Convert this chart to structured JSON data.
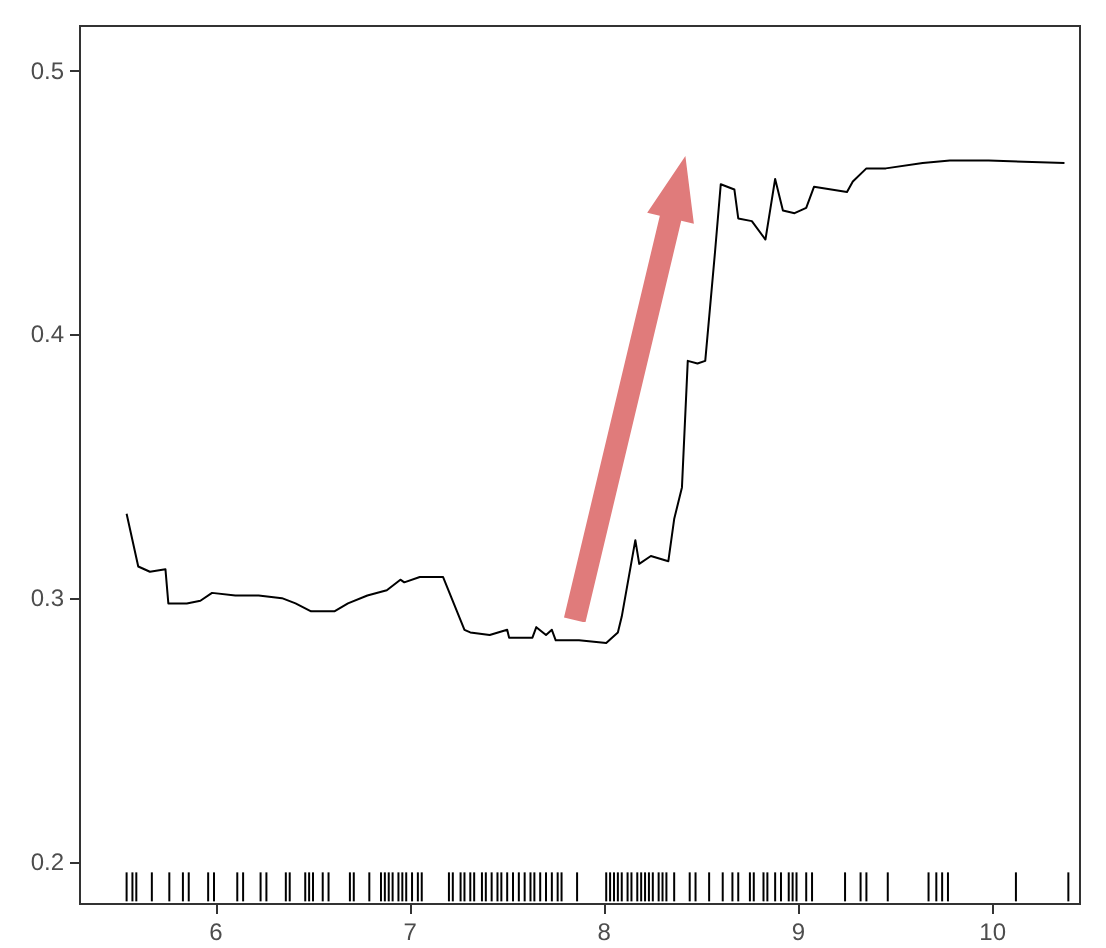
{
  "chart_data": {
    "type": "line",
    "xlim": [
      5.3,
      10.45
    ],
    "ylim": [
      0.184,
      0.517
    ],
    "xticks": [
      6,
      7,
      8,
      9,
      10
    ],
    "yticks": [
      0.2,
      0.3,
      0.4,
      0.5
    ],
    "grid": false,
    "series": [
      {
        "color": "#000000",
        "x": [
          5.54,
          5.6,
          5.66,
          5.74,
          5.755,
          5.85,
          5.92,
          5.98,
          6.1,
          6.22,
          6.34,
          6.41,
          6.49,
          6.61,
          6.68,
          6.78,
          6.88,
          6.95,
          6.97,
          7.05,
          7.17,
          7.28,
          7.31,
          7.41,
          7.5,
          7.51,
          7.63,
          7.65,
          7.7,
          7.73,
          7.75,
          7.87,
          8.01,
          8.07,
          8.09,
          8.16,
          8.18,
          8.24,
          8.33,
          8.36,
          8.4,
          8.43,
          8.48,
          8.52,
          8.57,
          8.6,
          8.67,
          8.69,
          8.76,
          8.83,
          8.88,
          8.92,
          8.98,
          9.04,
          9.08,
          9.25,
          9.28,
          9.35,
          9.45,
          9.64,
          9.78,
          9.98,
          10.37
        ],
        "values": [
          0.332,
          0.312,
          0.31,
          0.311,
          0.298,
          0.298,
          0.299,
          0.302,
          0.301,
          0.301,
          0.3,
          0.298,
          0.295,
          0.295,
          0.298,
          0.301,
          0.303,
          0.307,
          0.306,
          0.308,
          0.308,
          0.288,
          0.287,
          0.286,
          0.288,
          0.285,
          0.285,
          0.289,
          0.286,
          0.288,
          0.284,
          0.284,
          0.283,
          0.287,
          0.293,
          0.322,
          0.313,
          0.316,
          0.314,
          0.33,
          0.342,
          0.39,
          0.389,
          0.39,
          0.431,
          0.457,
          0.455,
          0.444,
          0.443,
          0.436,
          0.459,
          0.447,
          0.446,
          0.448,
          0.456,
          0.454,
          0.458,
          0.463,
          0.463,
          0.465,
          0.466,
          0.466,
          0.465
        ]
      },
      {
        "type": "bar",
        "color": "#000000",
        "x": [
          5.54,
          5.57,
          5.59,
          5.67,
          5.76,
          5.83,
          5.86,
          5.96,
          5.99,
          6.11,
          6.14,
          6.23,
          6.26,
          6.36,
          6.38,
          6.46,
          6.48,
          6.5,
          6.55,
          6.58,
          6.69,
          6.71,
          6.79,
          6.85,
          6.87,
          6.89,
          6.91,
          6.94,
          6.96,
          6.98,
          7.01,
          7.04,
          7.06,
          7.2,
          7.22,
          7.26,
          7.28,
          7.31,
          7.33,
          7.37,
          7.39,
          7.42,
          7.45,
          7.47,
          7.5,
          7.53,
          7.56,
          7.59,
          7.62,
          7.64,
          7.67,
          7.7,
          7.73,
          7.76,
          7.78,
          7.86,
          8.01,
          8.03,
          8.05,
          8.07,
          8.09,
          8.12,
          8.14,
          8.17,
          8.19,
          8.21,
          8.23,
          8.25,
          8.28,
          8.3,
          8.32,
          8.36,
          8.44,
          8.47,
          8.54,
          8.61,
          8.66,
          8.69,
          8.75,
          8.77,
          8.82,
          8.84,
          8.88,
          8.91,
          8.95,
          8.97,
          8.99,
          9.04,
          9.07,
          9.24,
          9.32,
          9.35,
          9.46,
          9.67,
          9.71,
          9.74,
          9.77,
          10.12,
          10.39
        ],
        "base": [
          0.185,
          0.185,
          0.185,
          0.185,
          0.185,
          0.185,
          0.185,
          0.185,
          0.185,
          0.185,
          0.185,
          0.185,
          0.185,
          0.185,
          0.185,
          0.185,
          0.185,
          0.185,
          0.185,
          0.185,
          0.185,
          0.185,
          0.185,
          0.185,
          0.185,
          0.185,
          0.185,
          0.185,
          0.185,
          0.185,
          0.185,
          0.185,
          0.185,
          0.185,
          0.185,
          0.185,
          0.185,
          0.185,
          0.185,
          0.185,
          0.185,
          0.185,
          0.185,
          0.185,
          0.185,
          0.185,
          0.185,
          0.185,
          0.185,
          0.185,
          0.185,
          0.185,
          0.185,
          0.185,
          0.185,
          0.185,
          0.185,
          0.185,
          0.185,
          0.185,
          0.185,
          0.185,
          0.185,
          0.185,
          0.185,
          0.185,
          0.185,
          0.185,
          0.185,
          0.185,
          0.185,
          0.185,
          0.185,
          0.185,
          0.185,
          0.185,
          0.185,
          0.185,
          0.185,
          0.185,
          0.185,
          0.185,
          0.185,
          0.185,
          0.185,
          0.185,
          0.185,
          0.185,
          0.185,
          0.185,
          0.185,
          0.185,
          0.185,
          0.185,
          0.185,
          0.185,
          0.185,
          0.185,
          0.185
        ],
        "values": [
          0.011,
          0.011,
          0.011,
          0.011,
          0.011,
          0.011,
          0.011,
          0.011,
          0.011,
          0.011,
          0.011,
          0.011,
          0.011,
          0.011,
          0.011,
          0.011,
          0.011,
          0.011,
          0.011,
          0.011,
          0.011,
          0.011,
          0.011,
          0.011,
          0.011,
          0.011,
          0.011,
          0.011,
          0.011,
          0.011,
          0.011,
          0.011,
          0.011,
          0.011,
          0.011,
          0.011,
          0.011,
          0.011,
          0.011,
          0.011,
          0.011,
          0.011,
          0.011,
          0.011,
          0.011,
          0.011,
          0.011,
          0.011,
          0.011,
          0.011,
          0.011,
          0.011,
          0.011,
          0.011,
          0.011,
          0.011,
          0.011,
          0.011,
          0.011,
          0.011,
          0.011,
          0.011,
          0.011,
          0.011,
          0.011,
          0.011,
          0.011,
          0.011,
          0.011,
          0.011,
          0.011,
          0.011,
          0.011,
          0.011,
          0.011,
          0.011,
          0.011,
          0.011,
          0.011,
          0.011,
          0.011,
          0.011,
          0.011,
          0.011,
          0.011,
          0.011,
          0.011,
          0.011,
          0.011,
          0.011,
          0.011,
          0.011,
          0.011,
          0.011,
          0.011,
          0.011,
          0.011,
          0.011,
          0.011
        ]
      }
    ]
  }
}
